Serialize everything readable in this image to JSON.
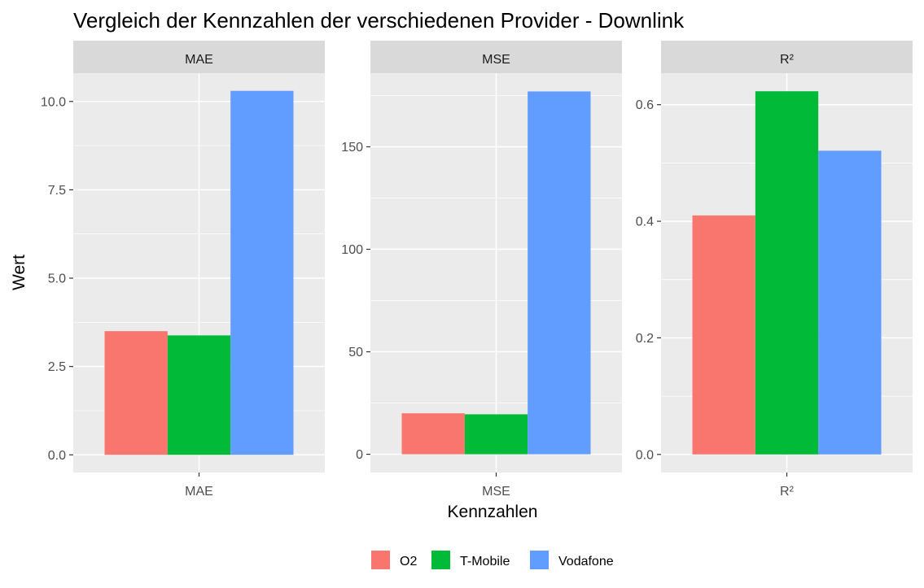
{
  "title": "Vergleich der Kennzahlen der verschiedenen Provider - Downlink",
  "ylabel": "Wert",
  "xlabel": "Kennzahlen",
  "colors": {
    "O2": "#F8766D",
    "T-Mobile": "#00BA38",
    "Vodafone": "#619CFF",
    "panel_bg": "#EBEBEB",
    "strip_bg": "#D9D9D9",
    "grid": "#FFFFFF"
  },
  "legend": [
    {
      "name": "O2",
      "color": "#F8766D"
    },
    {
      "name": "T-Mobile",
      "color": "#00BA38"
    },
    {
      "name": "Vodafone",
      "color": "#619CFF"
    }
  ],
  "chart_data": [
    {
      "type": "bar",
      "facet": "MAE",
      "categories": [
        "MAE"
      ],
      "series": [
        {
          "name": "O2",
          "values": [
            3.5
          ]
        },
        {
          "name": "T-Mobile",
          "values": [
            3.38
          ]
        },
        {
          "name": "Vodafone",
          "values": [
            10.3
          ]
        }
      ],
      "ylim": [
        -0.5,
        10.8
      ],
      "yticks": [
        0,
        2.5,
        5,
        7.5,
        10
      ],
      "ytick_labels": [
        "0.0",
        "2.5",
        "5.0",
        "7.5",
        "10.0"
      ]
    },
    {
      "type": "bar",
      "facet": "MSE",
      "categories": [
        "MSE"
      ],
      "series": [
        {
          "name": "O2",
          "values": [
            20
          ]
        },
        {
          "name": "T-Mobile",
          "values": [
            19.5
          ]
        },
        {
          "name": "Vodafone",
          "values": [
            177
          ]
        }
      ],
      "ylim": [
        -8.9,
        185.9
      ],
      "yticks": [
        0,
        50,
        100,
        150
      ],
      "ytick_labels": [
        "0",
        "50",
        "100",
        "150"
      ]
    },
    {
      "type": "bar",
      "facet": "R²",
      "categories": [
        "R²"
      ],
      "series": [
        {
          "name": "O2",
          "values": [
            0.41
          ]
        },
        {
          "name": "T-Mobile",
          "values": [
            0.623
          ]
        },
        {
          "name": "Vodafone",
          "values": [
            0.521
          ]
        }
      ],
      "ylim": [
        -0.031,
        0.654
      ],
      "yticks": [
        0,
        0.2,
        0.4,
        0.6
      ],
      "ytick_labels": [
        "0.0",
        "0.2",
        "0.4",
        "0.6"
      ]
    }
  ]
}
